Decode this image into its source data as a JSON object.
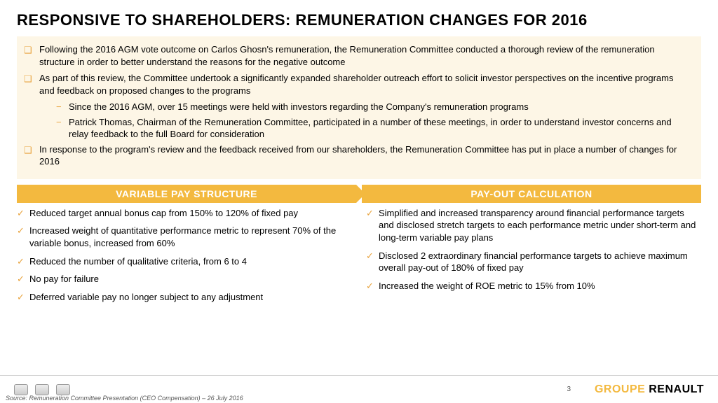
{
  "colors": {
    "accent": "#f3b93f",
    "intro_bg": "#fdf6e6",
    "bullet_icon": "#e8a33d",
    "text": "#000000"
  },
  "title": "RESPONSIVE TO SHAREHOLDERS: REMUNERATION CHANGES FOR 2016",
  "intro": {
    "bullets": [
      "Following the 2016 AGM vote outcome on Carlos Ghosn's remuneration, the Remuneration Committee conducted a thorough review of the remuneration structure in order to better understand the reasons for the negative outcome",
      "As part of this review, the Committee undertook a significantly expanded shareholder outreach effort to solicit investor perspectives on the incentive programs and feedback on proposed changes to the programs",
      "In response to the program's review and the feedback received from our shareholders, the Remuneration Committee has put in place a number of changes for 2016"
    ],
    "subs": [
      "Since the 2016 AGM, over 15 meetings were held with investors regarding the Company's remuneration programs",
      "Patrick Thomas, Chairman of the Remuneration Committee, participated in a number of these meetings, in order to understand investor concerns and relay feedback to the full Board for consideration"
    ]
  },
  "sections": {
    "left_header": "VARIABLE PAY STRUCTURE",
    "right_header": "PAY-OUT CALCULATION",
    "left_items": [
      "Reduced target annual bonus cap from 150% to 120% of fixed pay",
      "Increased weight of quantitative performance metric to represent 70% of the variable bonus, increased from 60%",
      "Reduced the number of qualitative criteria, from 6 to 4",
      "No pay for failure",
      "Deferred variable pay no longer subject to any adjustment"
    ],
    "right_items": [
      "Simplified and increased transparency around financial performance targets and disclosed stretch targets to each performance metric under short-term and long-term variable pay plans",
      "Disclosed 2 extraordinary financial performance targets to achieve maximum overall pay-out of 180% of fixed pay",
      "Increased the weight of ROE metric to 15% from 10%"
    ]
  },
  "footer": {
    "page": "3",
    "brand_left": "GROUPE",
    "brand_right": " RENAULT",
    "source": "Source: Remuneration Committee Presentation (CEO Compensation) – 26 July 2016"
  }
}
